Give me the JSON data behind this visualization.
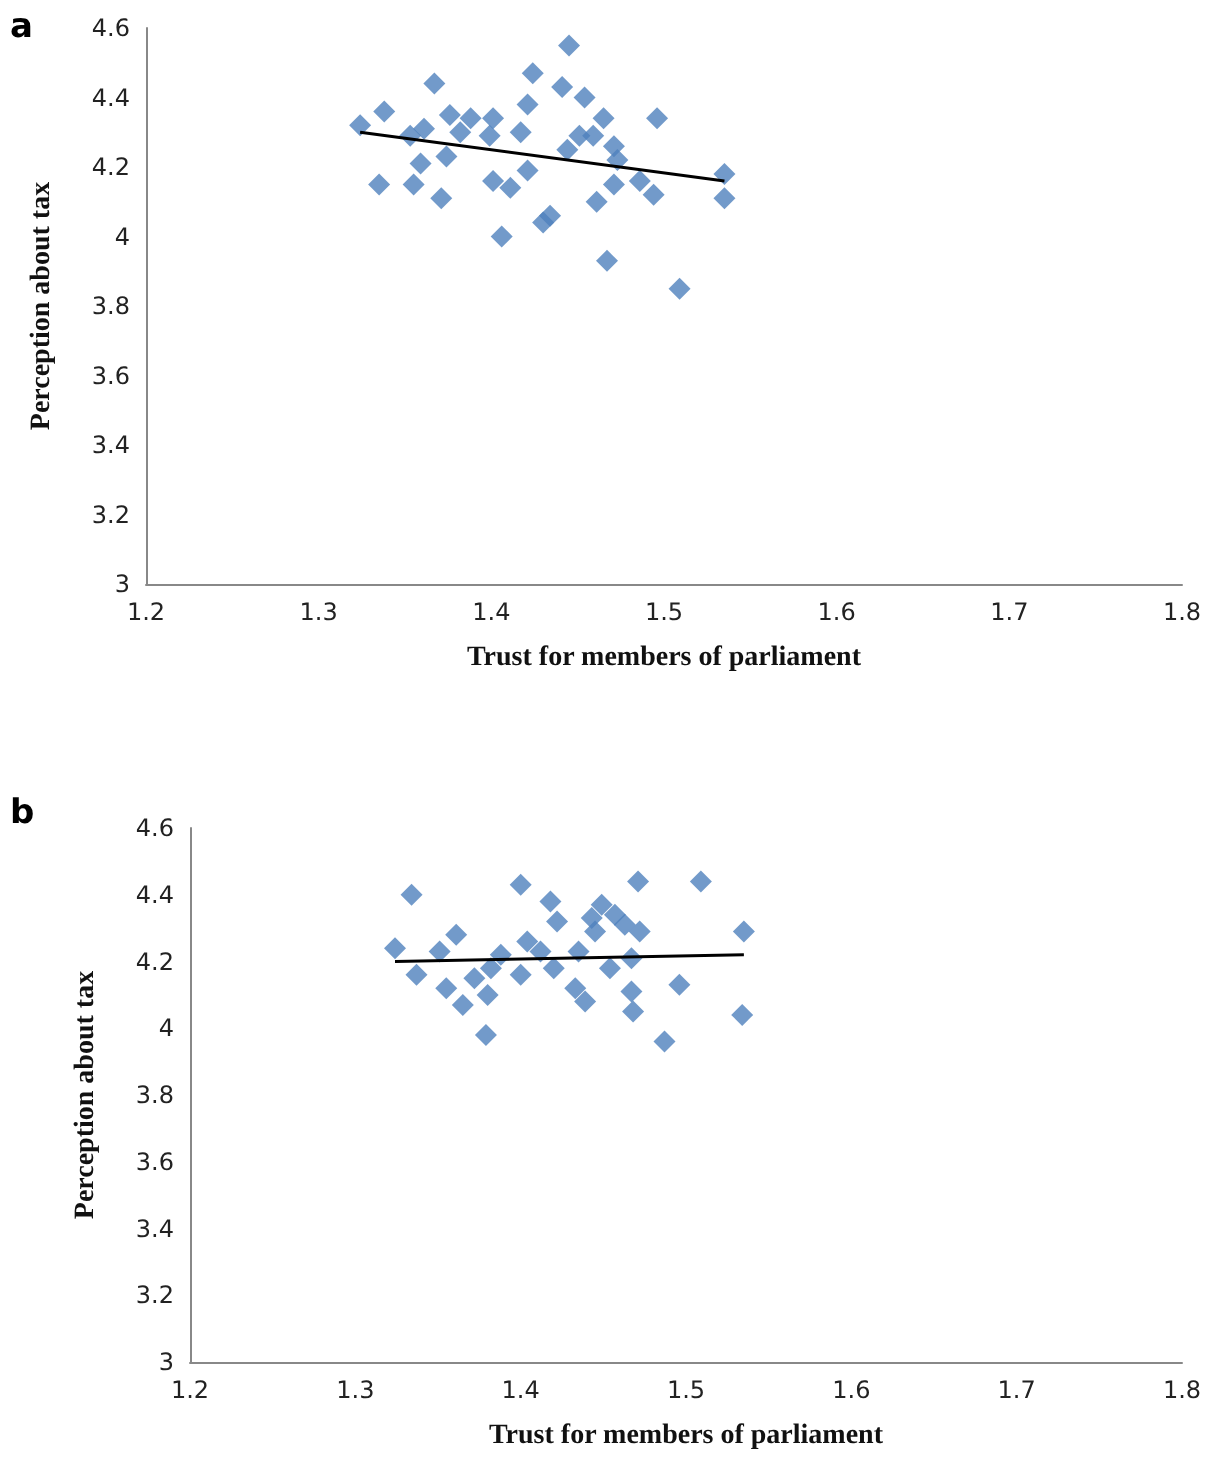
{
  "chart_data": [
    {
      "type": "scatter",
      "title": "a",
      "xlabel": "Trust for members of parliament",
      "ylabel": "Perception about tax",
      "xlim": [
        1.2,
        1.8
      ],
      "xticks": [
        1.2,
        1.3,
        1.4,
        1.5,
        1.6,
        1.7,
        1.8
      ],
      "ylim": [
        3,
        4.6
      ],
      "yticks": [
        3,
        3.2,
        3.4,
        3.6,
        3.8,
        4,
        4.2,
        4.4,
        4.6
      ],
      "grid": false,
      "marker": "diamond",
      "series": [
        {
          "color": "#4f81bd",
          "x": [
            1.324,
            1.338,
            1.367,
            1.353,
            1.361,
            1.359,
            1.335,
            1.355,
            1.371,
            1.376,
            1.382,
            1.374,
            1.388,
            1.401,
            1.399,
            1.417,
            1.421,
            1.424,
            1.445,
            1.441,
            1.454,
            1.465,
            1.451,
            1.444,
            1.459,
            1.471,
            1.473,
            1.421,
            1.401,
            1.411,
            1.434,
            1.43,
            1.406,
            1.461,
            1.471,
            1.486,
            1.494,
            1.496,
            1.467,
            1.509,
            1.535,
            1.535
          ],
          "values": [
            4.32,
            4.36,
            4.44,
            4.29,
            4.31,
            4.21,
            4.15,
            4.15,
            4.11,
            4.35,
            4.3,
            4.23,
            4.34,
            4.34,
            4.29,
            4.3,
            4.38,
            4.47,
            4.55,
            4.43,
            4.4,
            4.34,
            4.29,
            4.25,
            4.29,
            4.26,
            4.22,
            4.19,
            4.16,
            4.14,
            4.06,
            4.04,
            4.0,
            4.1,
            4.15,
            4.16,
            4.12,
            4.34,
            3.93,
            3.85,
            4.18,
            4.11
          ]
        },
        {
          "type": "line",
          "color": "#000000",
          "marker": "none",
          "x": [
            1.324,
            1.535
          ],
          "values": [
            4.3,
            4.16
          ]
        }
      ]
    },
    {
      "type": "scatter",
      "title": "b",
      "xlabel": "Trust for members of parliament",
      "ylabel": "Perception about tax",
      "xlim": [
        1.2,
        1.8
      ],
      "xticks": [
        1.2,
        1.3,
        1.4,
        1.5,
        1.6,
        1.7,
        1.8
      ],
      "ylim": [
        3,
        4.6
      ],
      "yticks": [
        3,
        3.2,
        3.4,
        3.6,
        3.8,
        4,
        4.2,
        4.4,
        4.6
      ],
      "grid": false,
      "marker": "diamond",
      "series": [
        {
          "color": "#4f81bd",
          "x": [
            1.324,
            1.334,
            1.337,
            1.351,
            1.361,
            1.355,
            1.365,
            1.372,
            1.38,
            1.382,
            1.379,
            1.388,
            1.4,
            1.4,
            1.404,
            1.412,
            1.418,
            1.422,
            1.42,
            1.435,
            1.433,
            1.439,
            1.443,
            1.449,
            1.445,
            1.457,
            1.463,
            1.472,
            1.454,
            1.467,
            1.467,
            1.468,
            1.471,
            1.487,
            1.496,
            1.509,
            1.535,
            1.534
          ],
          "values": [
            4.24,
            4.4,
            4.16,
            4.23,
            4.28,
            4.12,
            4.07,
            4.15,
            4.1,
            4.18,
            3.98,
            4.22,
            4.16,
            4.43,
            4.26,
            4.23,
            4.38,
            4.32,
            4.18,
            4.23,
            4.12,
            4.08,
            4.33,
            4.37,
            4.29,
            4.34,
            4.31,
            4.29,
            4.18,
            4.21,
            4.11,
            4.05,
            4.44,
            3.96,
            4.13,
            4.44,
            4.29,
            4.04
          ]
        },
        {
          "type": "line",
          "color": "#000000",
          "marker": "none",
          "x": [
            1.324,
            1.535
          ],
          "values": [
            4.2,
            4.22
          ]
        }
      ]
    }
  ]
}
